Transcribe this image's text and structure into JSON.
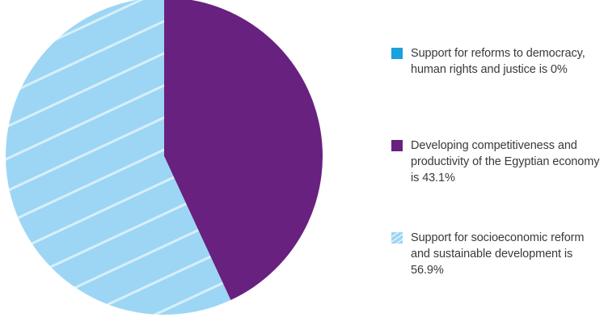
{
  "chart_data": {
    "type": "pie",
    "title": "",
    "start_angle": "12 o'clock, clockwise",
    "series": [
      {
        "label": "Support for reforms to democracy, human rights and justice is 0%",
        "value": 0,
        "color": "#1aa1de",
        "pattern": "solid"
      },
      {
        "label": "Developing competitiveness and productivity of the Egyptian economy is 43.1%",
        "value": 43.1,
        "color": "#68217f",
        "pattern": "solid"
      },
      {
        "label": "Support for socioeconomic reform and sustainable development is 56.9%",
        "value": 56.9,
        "color": "#9dd6f4",
        "pattern": "white diagonal stripes"
      }
    ],
    "legend_position": "right"
  }
}
